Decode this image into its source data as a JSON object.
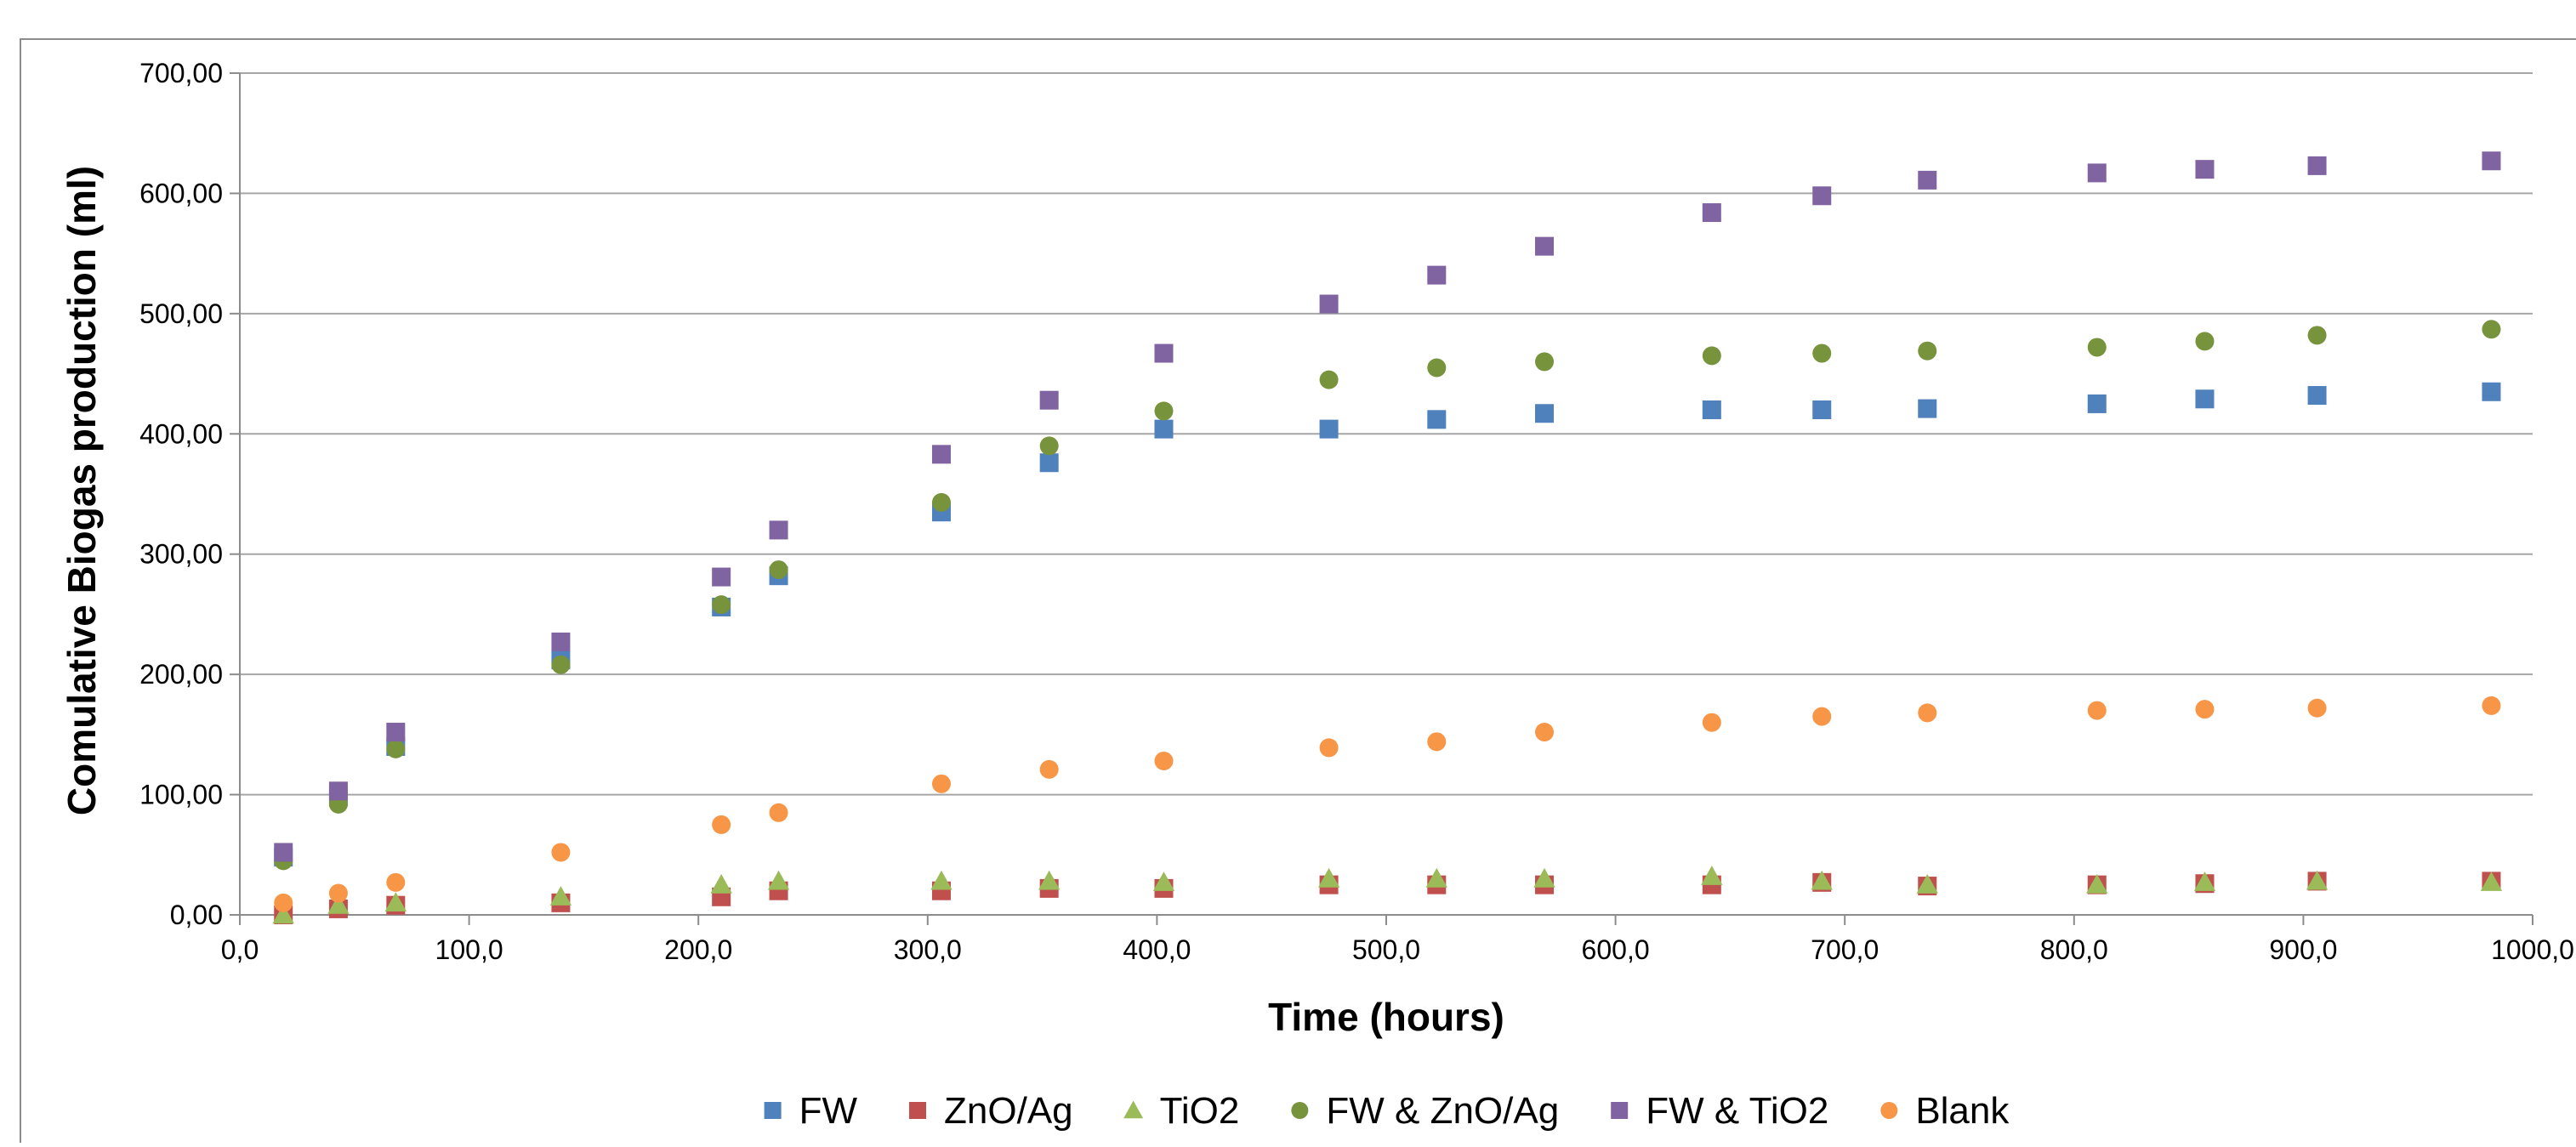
{
  "chart_data": {
    "type": "scatter",
    "title": "",
    "xlabel": "Time (hours)",
    "ylabel": "Comulative Biogas production (ml)",
    "xlim": [
      0,
      1000
    ],
    "ylim": [
      0,
      700
    ],
    "x_ticks": [
      "0,0",
      "100,0",
      "200,0",
      "300,0",
      "400,0",
      "500,0",
      "600,0",
      "700,0",
      "800,0",
      "900,0",
      "1000,0"
    ],
    "y_ticks": [
      "0,00",
      "100,00",
      "200,00",
      "300,00",
      "400,00",
      "500,00",
      "600,00",
      "700,00"
    ],
    "grid": "horizontal",
    "legend_position": "bottom",
    "x": [
      19,
      43,
      68,
      140,
      210,
      235,
      306,
      353,
      403,
      475,
      522,
      569,
      642,
      690,
      736,
      810,
      857,
      906,
      982
    ],
    "series": [
      {
        "name": "FW",
        "color": "#4F81BD",
        "marker": "square",
        "values": [
          48,
          98,
          140,
          212,
          256,
          282,
          335,
          376,
          404,
          404,
          412,
          417,
          420,
          420,
          421,
          425,
          429,
          432,
          435
        ]
      },
      {
        "name": "ZnO/Ag",
        "color": "#C0504D",
        "marker": "square",
        "values": [
          0,
          5,
          8,
          10,
          15,
          20,
          20,
          22,
          22,
          25,
          25,
          25,
          25,
          27,
          24,
          25,
          26,
          28,
          28
        ]
      },
      {
        "name": "TiO2",
        "color": "#9BBB59",
        "marker": "triangle",
        "values": [
          0,
          8,
          10,
          15,
          25,
          28,
          28,
          28,
          27,
          30,
          30,
          30,
          32,
          28,
          25,
          25,
          27,
          28,
          27
        ]
      },
      {
        "name": "FW & ZnO/Ag",
        "color": "#77933C",
        "marker": "circle",
        "values": [
          45,
          92,
          138,
          208,
          258,
          287,
          343,
          390,
          419,
          445,
          455,
          460,
          465,
          467,
          469,
          472,
          477,
          482,
          487
        ]
      },
      {
        "name": "FW & TiO2",
        "color": "#8064A2",
        "marker": "square",
        "values": [
          52,
          103,
          152,
          227,
          281,
          320,
          383,
          428,
          467,
          508,
          532,
          556,
          584,
          598,
          611,
          617,
          620,
          623,
          627
        ]
      },
      {
        "name": "Blank",
        "color": "#F79646",
        "marker": "circle",
        "values": [
          10,
          18,
          27,
          52,
          75,
          85,
          109,
          121,
          128,
          139,
          144,
          152,
          160,
          165,
          168,
          170,
          171,
          172,
          174
        ]
      }
    ]
  }
}
